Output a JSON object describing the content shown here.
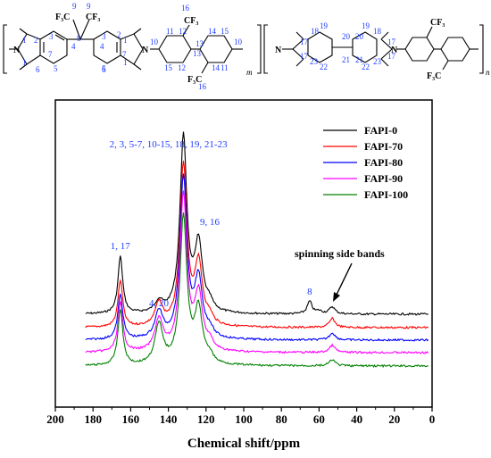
{
  "chart_data": {
    "type": "line",
    "xlabel": "Chemical shift/ppm",
    "xlim": [
      200,
      0
    ],
    "x_inverted": true,
    "xticks": [
      200,
      180,
      160,
      140,
      120,
      100,
      80,
      60,
      40,
      20,
      0
    ],
    "grid": false,
    "legend_position": "top-right",
    "series": [
      {
        "name": "FAPI-0",
        "color": "#000000",
        "offset": 0
      },
      {
        "name": "FAPI-70",
        "color": "#ff0000",
        "offset": 1
      },
      {
        "name": "FAPI-80",
        "color": "#0000ff",
        "offset": 2
      },
      {
        "name": "FAPI-90",
        "color": "#ff00ff",
        "offset": 3
      },
      {
        "name": "FAPI-100",
        "color": "#008000",
        "offset": 4
      }
    ],
    "peaks": [
      {
        "x": 165.5,
        "label": "1, 17"
      },
      {
        "x": 145,
        "label": "4, 20"
      },
      {
        "x": 132,
        "label": "2, 3, 5-7, 10-15, 18, 19, 21-23"
      },
      {
        "x": 124,
        "label": "9, 16"
      },
      {
        "x": 65,
        "label": "8"
      }
    ],
    "annotations": [
      {
        "text": "spinning side bands",
        "x": 53
      }
    ]
  },
  "structure": {
    "substituents": [
      "F₃C",
      "CF₃",
      "CF₃",
      "F₃C",
      "CF₃",
      "F₃C"
    ],
    "subscripts": [
      "m",
      "n"
    ],
    "atom_labels": [
      "N",
      "N",
      "N",
      "N"
    ],
    "numbers": [
      "1",
      "1",
      "1",
      "1",
      "2",
      "3",
      "4",
      "5",
      "6",
      "7",
      "8",
      "9",
      "9",
      "3",
      "4",
      "5",
      "6",
      "7",
      "2",
      "10",
      "11",
      "12",
      "13",
      "14",
      "15",
      "15",
      "14",
      "16",
      "16",
      "13",
      "12",
      "11",
      "10",
      "17",
      "17",
      "18",
      "19",
      "20",
      "20",
      "19",
      "18",
      "17",
      "17",
      "23",
      "22",
      "21",
      "21",
      "22",
      "23"
    ]
  }
}
